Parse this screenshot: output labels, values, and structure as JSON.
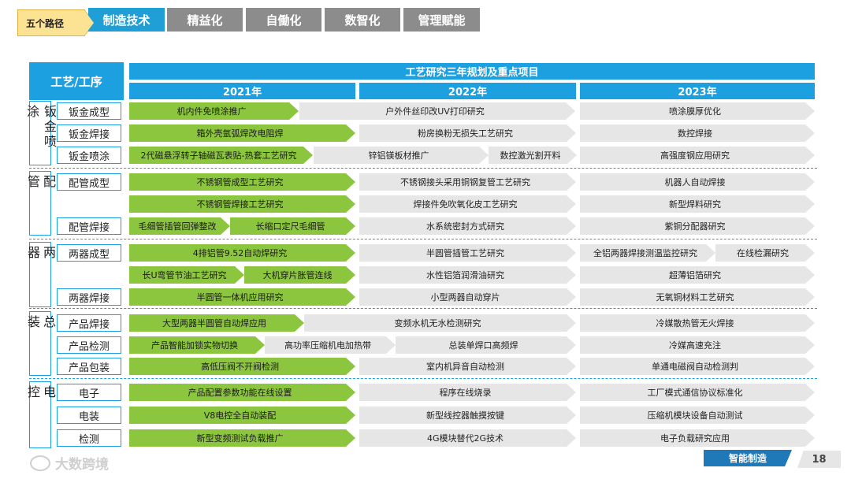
{
  "nav": {
    "path_label": "五个路径",
    "tabs": [
      {
        "label": "制造技术",
        "active": true
      },
      {
        "label": "精益化",
        "active": false
      },
      {
        "label": "自働化",
        "active": false
      },
      {
        "label": "数智化",
        "active": false
      },
      {
        "label": "管理赋能",
        "active": false
      }
    ]
  },
  "table": {
    "process_header": "工艺/工序",
    "plan_header": "工艺研究三年规划及重点项目",
    "years": [
      "2021年",
      "2022年",
      "2023年"
    ],
    "groups": [
      {
        "name": "钣金喷涂"
      },
      {
        "name": "配管"
      },
      {
        "name": "两器"
      },
      {
        "name": "总装"
      },
      {
        "name": "电控"
      }
    ],
    "processes": [
      "钣金成型",
      "钣金焊接",
      "钣金喷涂",
      "配管成型",
      "配管焊接",
      "两器成型",
      "两器焊接",
      "产品焊接",
      "产品检测",
      "产品包装",
      "电子",
      "电装",
      "检测"
    ],
    "rows": [
      [
        "机内件免喷涂推广",
        "户外件丝印改UV打印研究",
        "喷涂膜厚优化"
      ],
      [
        "箱外壳氩弧焊改电阻焊",
        "粉房换粉无损失工艺研究",
        "数控焊接"
      ],
      [
        "2代磁悬浮转子轴磁瓦表贴-热套工艺研究",
        "锌铝镁板材推广",
        "数控激光割开料",
        "高强度钢应用研究"
      ],
      [
        "不锈钢管成型工艺研究",
        "不锈钢接头采用铜钢复管工艺研究",
        "机器人自动焊接"
      ],
      [
        "不锈钢管焊接工艺研究",
        "焊接件免吹氧化皮工艺研究",
        "新型焊料研究"
      ],
      [
        "毛细管插管回弹整改",
        "长缩口定尺毛细管",
        "水系统密封方式研究",
        "紫铜分配器研究"
      ],
      [
        "4排铝管9.52自动焊研究",
        "半圆管插管工艺研究",
        "全铝两器焊接测温监控研究",
        "在线检漏研究"
      ],
      [
        "长U弯管节油工艺研究",
        "大机穿片胀管连线",
        "水性铝箔润滑油研究",
        "超薄铝箔研究"
      ],
      [
        "半圆管一体机应用研究",
        "小型两器自动穿片",
        "无氧铜材料工艺研究"
      ],
      [
        "大型两器半圆管自动焊应用",
        "变频水机无水检测研究",
        "冷媒散热管无火焊接"
      ],
      [
        "产品智能加锁实物切换",
        "高功率压缩机电加热带",
        "总装单焊口高频焊",
        "冷媒高速充注"
      ],
      [
        "高低压阀不开阀检测",
        "室内机异音自动检测",
        "单通电磁阀自动检测判"
      ],
      [
        "产品配置参数功能在线设置",
        "程序在线烧录",
        "工厂模式通信协议标准化"
      ],
      [
        "V8电控全自动装配",
        "新型线控器触摸按键",
        "压缩机模块设备自动测试"
      ],
      [
        "新型变频测试负载推广",
        "4G模块替代2G技术",
        "电子负载研究应用"
      ]
    ]
  },
  "footer": {
    "watermark": "大数跨境",
    "section": "智能制造",
    "page": "18"
  },
  "colors": {
    "accent": "#1da0e0",
    "green": "#8cc63e",
    "gray": "#e6e6e6",
    "tab_gray": "#8c8c8c"
  }
}
